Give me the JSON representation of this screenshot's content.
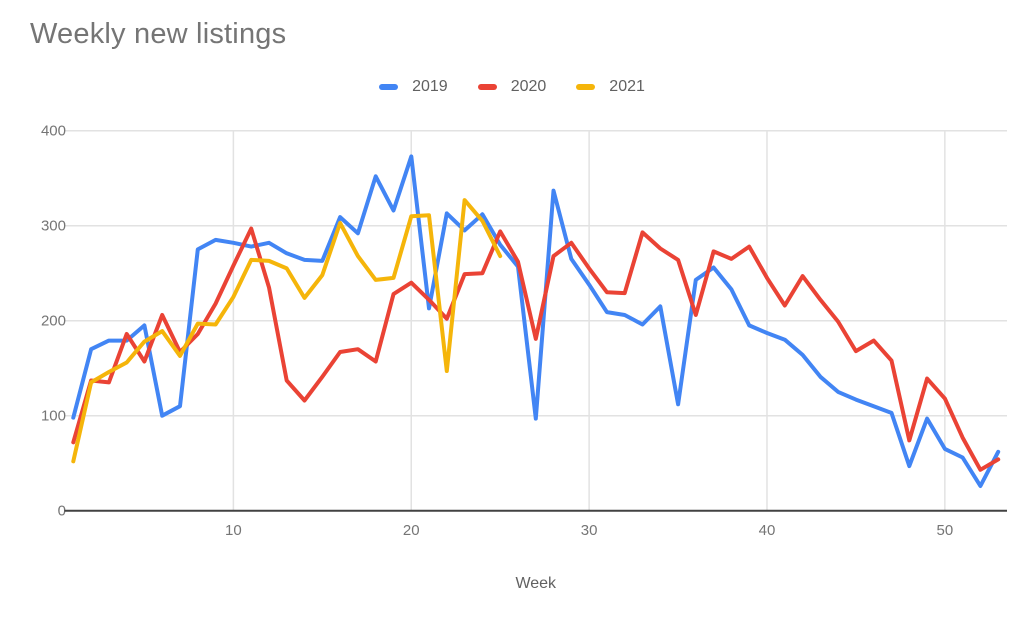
{
  "title": "Weekly new listings",
  "legend": {
    "position": "top",
    "items": [
      {
        "label": "2019",
        "color": "#4285f4"
      },
      {
        "label": "2020",
        "color": "#ea4335"
      },
      {
        "label": "2021",
        "color": "#f5b50a"
      }
    ]
  },
  "axes": {
    "x_label": "Week",
    "x_ticks": [
      10,
      20,
      30,
      40,
      50
    ],
    "y_ticks": [
      0,
      100,
      200,
      300,
      400
    ]
  },
  "chart_data": {
    "type": "line",
    "title": "Weekly new listings",
    "xlabel": "Week",
    "ylabel": "",
    "x_start": 1,
    "x_step": 1,
    "xlim": [
      0.5,
      53.5
    ],
    "ylim": [
      0,
      400
    ],
    "grid": true,
    "legend_position": "top",
    "series": [
      {
        "name": "2019",
        "color": "#4285f4",
        "values": [
          98,
          170,
          179,
          179,
          195,
          100,
          110,
          275,
          285,
          282,
          278,
          282,
          271,
          264,
          263,
          309,
          292,
          352,
          316,
          373,
          213,
          313,
          295,
          312,
          280,
          257,
          97,
          337,
          265,
          238,
          209,
          206,
          196,
          215,
          112,
          243,
          256,
          233,
          195,
          187,
          180,
          164,
          141,
          125,
          117,
          110,
          103,
          47,
          97,
          65,
          56,
          26,
          62
        ]
      },
      {
        "name": "2020",
        "color": "#ea4335",
        "values": [
          72,
          137,
          135,
          186,
          157,
          206,
          167,
          186,
          218,
          258,
          297,
          235,
          137,
          116,
          141,
          167,
          170,
          157,
          228,
          240,
          222,
          202,
          249,
          250,
          294,
          262,
          181,
          268,
          282,
          255,
          230,
          229,
          293,
          276,
          264,
          206,
          273,
          265,
          278,
          245,
          216,
          247,
          222,
          199,
          168,
          179,
          158,
          74,
          139,
          118,
          77,
          43,
          54
        ]
      },
      {
        "name": "2021",
        "color": "#f5b50a",
        "values": [
          52,
          135,
          146,
          156,
          178,
          189,
          163,
          197,
          196,
          225,
          264,
          263,
          255,
          224,
          248,
          303,
          268,
          243,
          245,
          310,
          311,
          147,
          327,
          305,
          268
        ]
      }
    ]
  }
}
